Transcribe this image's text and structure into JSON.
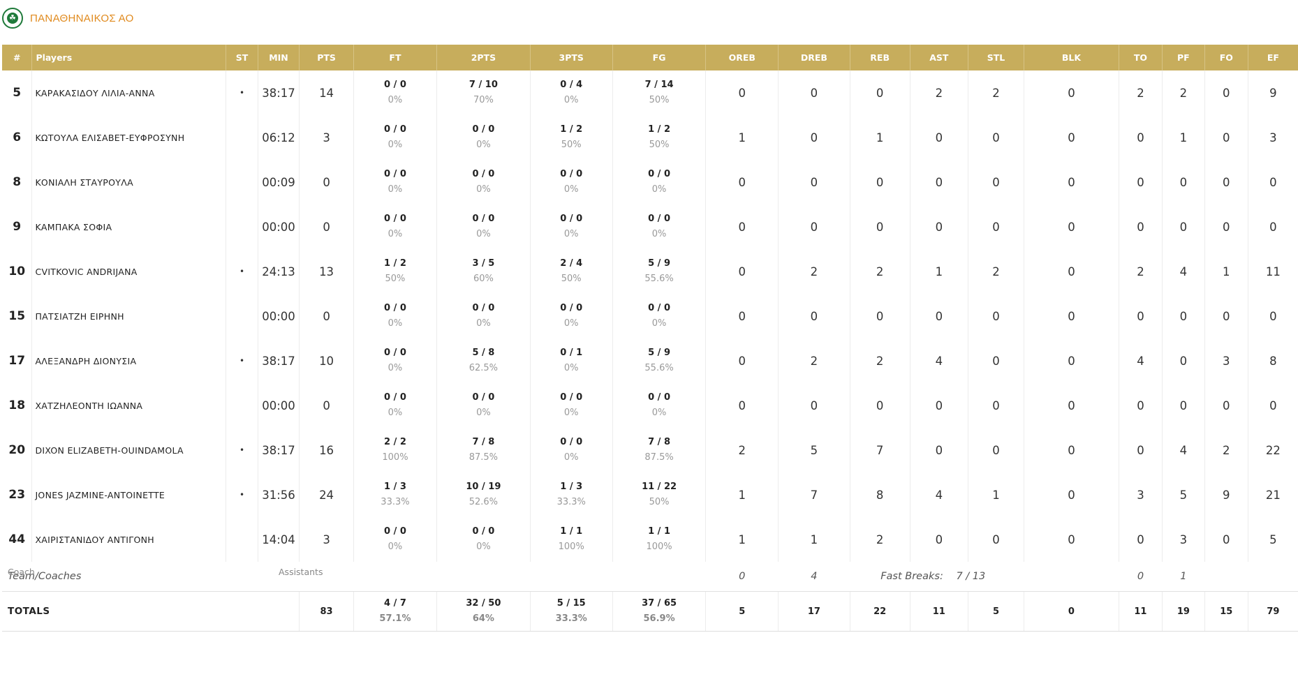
{
  "team": {
    "name": "ΠΑΝΑΘΗΝΑΙΚΟΣ ΑΟ",
    "logo_icon": "clover-crest-icon"
  },
  "headers": [
    "#",
    "Players",
    "ST",
    "MIN",
    "PTS",
    "FT",
    "2PTS",
    "3PTS",
    "FG",
    "OREB",
    "DREB",
    "REB",
    "AST",
    "STL",
    "BLK",
    "TO",
    "PF",
    "FO",
    "EF"
  ],
  "players": [
    {
      "no": "5",
      "name": "ΚΑΡΑΚΑΣΙΔΟΥ ΛΙΛΙΑ-ΑΝΝΑ",
      "st": "•",
      "min": "38:17",
      "pts": "14",
      "ft": "0 / 0",
      "ft_pct": "0%",
      "p2": "7 / 10",
      "p2_pct": "70%",
      "p3": "0 / 4",
      "p3_pct": "0%",
      "fg": "7 / 14",
      "fg_pct": "50%",
      "oreb": "0",
      "dreb": "0",
      "reb": "0",
      "ast": "2",
      "stl": "2",
      "blk": "0",
      "to": "2",
      "pf": "2",
      "fo": "0",
      "ef": "9"
    },
    {
      "no": "6",
      "name": "ΚΩΤΟΥΛΑ ΕΛΙΣΑΒΕΤ-ΕΥΦΡΟΣΥΝΗ",
      "st": "",
      "min": "06:12",
      "pts": "3",
      "ft": "0 / 0",
      "ft_pct": "0%",
      "p2": "0 / 0",
      "p2_pct": "0%",
      "p3": "1 / 2",
      "p3_pct": "50%",
      "fg": "1 / 2",
      "fg_pct": "50%",
      "oreb": "1",
      "dreb": "0",
      "reb": "1",
      "ast": "0",
      "stl": "0",
      "blk": "0",
      "to": "0",
      "pf": "1",
      "fo": "0",
      "ef": "3"
    },
    {
      "no": "8",
      "name": "ΚΟΝΙΑΛΗ ΣΤΑΥΡΟΥΛΑ",
      "st": "",
      "min": "00:09",
      "pts": "0",
      "ft": "0 / 0",
      "ft_pct": "0%",
      "p2": "0 / 0",
      "p2_pct": "0%",
      "p3": "0 / 0",
      "p3_pct": "0%",
      "fg": "0 / 0",
      "fg_pct": "0%",
      "oreb": "0",
      "dreb": "0",
      "reb": "0",
      "ast": "0",
      "stl": "0",
      "blk": "0",
      "to": "0",
      "pf": "0",
      "fo": "0",
      "ef": "0"
    },
    {
      "no": "9",
      "name": "ΚΑΜΠΑΚΑ ΣΟΦΙΑ",
      "st": "",
      "min": "00:00",
      "pts": "0",
      "ft": "0 / 0",
      "ft_pct": "0%",
      "p2": "0 / 0",
      "p2_pct": "0%",
      "p3": "0 / 0",
      "p3_pct": "0%",
      "fg": "0 / 0",
      "fg_pct": "0%",
      "oreb": "0",
      "dreb": "0",
      "reb": "0",
      "ast": "0",
      "stl": "0",
      "blk": "0",
      "to": "0",
      "pf": "0",
      "fo": "0",
      "ef": "0"
    },
    {
      "no": "10",
      "name": "CVITKOVIC ANDRIJANA",
      "st": "•",
      "min": "24:13",
      "pts": "13",
      "ft": "1 / 2",
      "ft_pct": "50%",
      "p2": "3 / 5",
      "p2_pct": "60%",
      "p3": "2 / 4",
      "p3_pct": "50%",
      "fg": "5 / 9",
      "fg_pct": "55.6%",
      "oreb": "0",
      "dreb": "2",
      "reb": "2",
      "ast": "1",
      "stl": "2",
      "blk": "0",
      "to": "2",
      "pf": "4",
      "fo": "1",
      "ef": "11"
    },
    {
      "no": "15",
      "name": "ΠΑΤΣΙΑΤΖΗ ΕΙΡΗΝΗ",
      "st": "",
      "min": "00:00",
      "pts": "0",
      "ft": "0 / 0",
      "ft_pct": "0%",
      "p2": "0 / 0",
      "p2_pct": "0%",
      "p3": "0 / 0",
      "p3_pct": "0%",
      "fg": "0 / 0",
      "fg_pct": "0%",
      "oreb": "0",
      "dreb": "0",
      "reb": "0",
      "ast": "0",
      "stl": "0",
      "blk": "0",
      "to": "0",
      "pf": "0",
      "fo": "0",
      "ef": "0"
    },
    {
      "no": "17",
      "name": "ΑΛΕΞΑΝΔΡΗ ΔΙΟΝΥΣΙΑ",
      "st": "•",
      "min": "38:17",
      "pts": "10",
      "ft": "0 / 0",
      "ft_pct": "0%",
      "p2": "5 / 8",
      "p2_pct": "62.5%",
      "p3": "0 / 1",
      "p3_pct": "0%",
      "fg": "5 / 9",
      "fg_pct": "55.6%",
      "oreb": "0",
      "dreb": "2",
      "reb": "2",
      "ast": "4",
      "stl": "0",
      "blk": "0",
      "to": "4",
      "pf": "0",
      "fo": "3",
      "ef": "8"
    },
    {
      "no": "18",
      "name": "ΧΑΤΖΗΛΕΟΝΤΗ ΙΩΑΝΝΑ",
      "st": "",
      "min": "00:00",
      "pts": "0",
      "ft": "0 / 0",
      "ft_pct": "0%",
      "p2": "0 / 0",
      "p2_pct": "0%",
      "p3": "0 / 0",
      "p3_pct": "0%",
      "fg": "0 / 0",
      "fg_pct": "0%",
      "oreb": "0",
      "dreb": "0",
      "reb": "0",
      "ast": "0",
      "stl": "0",
      "blk": "0",
      "to": "0",
      "pf": "0",
      "fo": "0",
      "ef": "0"
    },
    {
      "no": "20",
      "name": "DIXON ELIZABETH-OUINDAMOLA",
      "st": "•",
      "min": "38:17",
      "pts": "16",
      "ft": "2 / 2",
      "ft_pct": "100%",
      "p2": "7 / 8",
      "p2_pct": "87.5%",
      "p3": "0 / 0",
      "p3_pct": "0%",
      "fg": "7 / 8",
      "fg_pct": "87.5%",
      "oreb": "2",
      "dreb": "5",
      "reb": "7",
      "ast": "0",
      "stl": "0",
      "blk": "0",
      "to": "0",
      "pf": "4",
      "fo": "2",
      "ef": "22"
    },
    {
      "no": "23",
      "name": "JONES JAZMINE-ANTOINETTE",
      "st": "•",
      "min": "31:56",
      "pts": "24",
      "ft": "1 / 3",
      "ft_pct": "33.3%",
      "p2": "10 / 19",
      "p2_pct": "52.6%",
      "p3": "1 / 3",
      "p3_pct": "33.3%",
      "fg": "11 / 22",
      "fg_pct": "50%",
      "oreb": "1",
      "dreb": "7",
      "reb": "8",
      "ast": "4",
      "stl": "1",
      "blk": "0",
      "to": "3",
      "pf": "5",
      "fo": "9",
      "ef": "21"
    },
    {
      "no": "44",
      "name": "ΧΑΙΡΙΣΤΑΝΙΔΟΥ ΑΝΤΙΓΟΝΗ",
      "st": "",
      "min": "14:04",
      "pts": "3",
      "ft": "0 / 0",
      "ft_pct": "0%",
      "p2": "0 / 0",
      "p2_pct": "0%",
      "p3": "1 / 1",
      "p3_pct": "100%",
      "fg": "1 / 1",
      "fg_pct": "100%",
      "oreb": "1",
      "dreb": "1",
      "reb": "2",
      "ast": "0",
      "stl": "0",
      "blk": "0",
      "to": "0",
      "pf": "3",
      "fo": "0",
      "ef": "5"
    }
  ],
  "team_row": {
    "label": "Team/Coaches",
    "oreb": "0",
    "dreb": "4",
    "fast_breaks_label": "Fast Breaks:",
    "fast_breaks": "7 / 13",
    "to": "0",
    "pf": "1"
  },
  "totals": {
    "label": "TOTALS",
    "pts": "83",
    "ft": "4 / 7",
    "ft_pct": "57.1%",
    "p2": "32 / 50",
    "p2_pct": "64%",
    "p3": "5 / 15",
    "p3_pct": "33.3%",
    "fg": "37 / 65",
    "fg_pct": "56.9%",
    "oreb": "5",
    "dreb": "17",
    "reb": "22",
    "ast": "11",
    "stl": "5",
    "blk": "0",
    "to": "11",
    "pf": "19",
    "fo": "15",
    "ef": "79"
  },
  "footer": {
    "coach_label": "Coach",
    "assistants_label": "Assistants"
  },
  "colors": {
    "header_bg": "#c7ad5c",
    "team_name": "#e08a1e",
    "logo_green": "#1f7a3a"
  }
}
